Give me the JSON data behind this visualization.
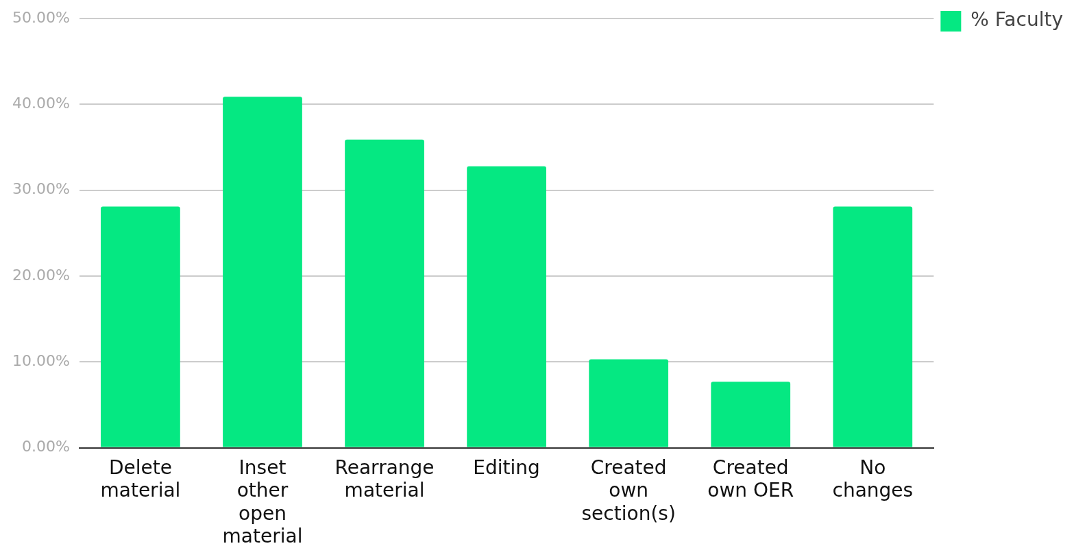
{
  "chart_data": {
    "type": "bar",
    "categories": [
      "Delete material",
      "Inset other open material",
      "Rearrange material",
      "Editing",
      "Created own section(s)",
      "Created own OER",
      "No changes"
    ],
    "series": [
      {
        "name": "% Faculty",
        "color": "#05e882",
        "values": [
          28.1,
          40.9,
          35.9,
          32.8,
          10.3,
          7.7,
          28.1
        ]
      }
    ],
    "ylim": [
      0,
      50
    ],
    "yticks": [
      {
        "value": 0,
        "label": "0.00%"
      },
      {
        "value": 10,
        "label": "10.00%"
      },
      {
        "value": 20,
        "label": "20.00%"
      },
      {
        "value": 30,
        "label": "30.00%"
      },
      {
        "value": 40,
        "label": "40.00%"
      },
      {
        "value": 50,
        "label": "50.00%"
      }
    ],
    "grid": "y",
    "legend": "top right"
  }
}
